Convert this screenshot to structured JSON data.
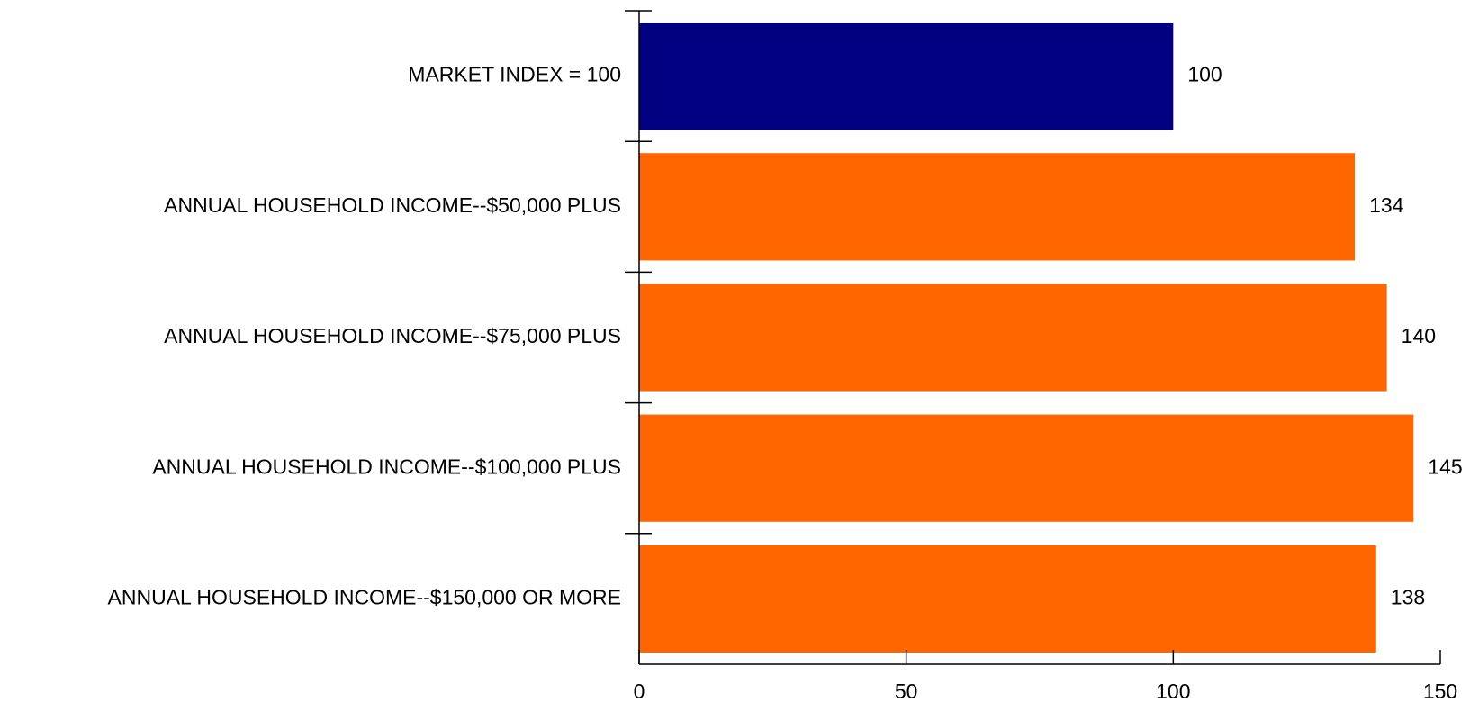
{
  "chart_data": {
    "type": "bar",
    "orientation": "horizontal",
    "title": "",
    "xlabel": "",
    "ylabel": "",
    "categories": [
      "MARKET INDEX = 100",
      "ANNUAL HOUSEHOLD INCOME--$50,000 PLUS",
      "ANNUAL HOUSEHOLD INCOME--$75,000 PLUS",
      "ANNUAL HOUSEHOLD INCOME--$100,000 PLUS",
      "ANNUAL HOUSEHOLD INCOME--$150,000 OR MORE"
    ],
    "values": [
      100,
      134,
      140,
      145,
      138
    ],
    "bar_colors": [
      "#000080",
      "#FF6600",
      "#FF6600",
      "#FF6600",
      "#FF6600"
    ],
    "xlim": [
      0,
      150
    ],
    "xticks": [
      0,
      50,
      100,
      150
    ],
    "grid": false,
    "legend": "none"
  }
}
